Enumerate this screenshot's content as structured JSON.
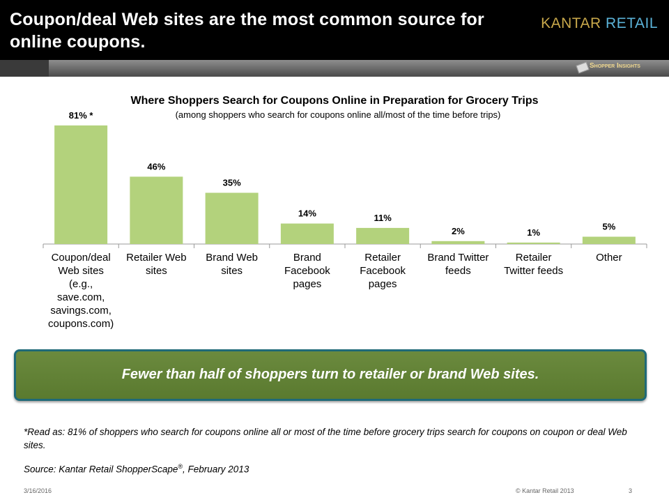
{
  "header": {
    "title": "Coupon/deal Web sites are the most common source for online coupons.",
    "logo_kantar": "KANTAR",
    "logo_retail": "RETAIL",
    "badge": "Shopper Insights"
  },
  "chart_data": {
    "type": "bar",
    "title": "Where Shoppers Search for Coupons Online in Preparation for Grocery Trips",
    "subtitle": "(among shoppers who search for coupons online all/most of the time before trips)",
    "categories": [
      [
        "Coupon/deal",
        "Web sites",
        "(e.g.,",
        "save.com,",
        "savings.com,",
        "coupons.com)"
      ],
      [
        "Retailer Web",
        "sites"
      ],
      [
        "Brand Web",
        "sites"
      ],
      [
        "Brand",
        "Facebook",
        "pages"
      ],
      [
        "Retailer",
        "Facebook",
        "pages"
      ],
      [
        "Brand Twitter",
        "feeds"
      ],
      [
        "Retailer",
        "Twitter feeds"
      ],
      [
        "Other"
      ]
    ],
    "values": [
      81,
      46,
      35,
      14,
      11,
      2,
      1,
      5
    ],
    "labels": [
      "81% *",
      "46%",
      "35%",
      "14%",
      "11%",
      "2%",
      "1%",
      "5%"
    ],
    "ylim": [
      0,
      100
    ],
    "bar_color": "#b3d27c",
    "grid": false
  },
  "callout": {
    "text": "Fewer than half of shoppers turn to retailer or brand Web sites."
  },
  "footnote": "*Read as: 81% of shoppers who search for coupons online all or most of the time before grocery trips search for coupons on coupon or deal Web sites.",
  "source": {
    "text": "Source: Kantar Retail ShopperScape",
    "reg": "®",
    "suffix": ", February 2013"
  },
  "footer": {
    "date": "3/16/2016",
    "copyright": "© Kantar Retail 2013",
    "page": "3"
  }
}
